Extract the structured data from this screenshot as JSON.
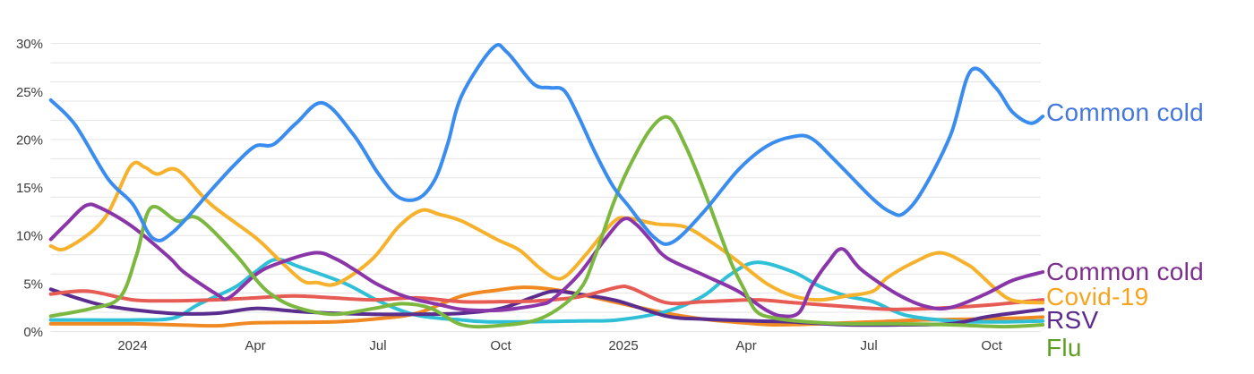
{
  "chart_data": {
    "type": "line",
    "title": "",
    "x_unit": "months_since_2023-11",
    "x_range_months": [
      0,
      24.25
    ],
    "grid": true,
    "legend_position": "right-end-labels",
    "x_ticks": [
      {
        "m": 2,
        "label": "2024"
      },
      {
        "m": 5,
        "label": "Apr"
      },
      {
        "m": 8,
        "label": "Jul"
      },
      {
        "m": 11,
        "label": "Oct"
      },
      {
        "m": 14,
        "label": "2025"
      },
      {
        "m": 17,
        "label": "Apr"
      },
      {
        "m": 20,
        "label": "Jul"
      },
      {
        "m": 23,
        "label": "Oct"
      }
    ],
    "y_axis": {
      "min": 0,
      "max": 30,
      "grid_step": 2,
      "unit": "%",
      "tick_values": [
        0,
        5,
        10,
        15,
        20,
        25,
        30
      ],
      "tick_labels": [
        "0%",
        "5%",
        "10%",
        "15%",
        "20%",
        "25%",
        "30%"
      ]
    },
    "series": [
      {
        "name": "",
        "end_label": "",
        "color": "#F08921",
        "label_color": "",
        "label_y": null,
        "points": [
          [
            0,
            0.8
          ],
          [
            1,
            0.8
          ],
          [
            2,
            0.8
          ],
          [
            3,
            0.7
          ],
          [
            4.05,
            0.6
          ],
          [
            5,
            0.9
          ],
          [
            6.9,
            1.0
          ],
          [
            7.9,
            1.3
          ],
          [
            8.95,
            1.9
          ],
          [
            10.05,
            3.7
          ],
          [
            10.9,
            4.3
          ],
          [
            11.55,
            4.6
          ],
          [
            12.25,
            4.4
          ],
          [
            12.9,
            3.9
          ],
          [
            13.85,
            3.0
          ],
          [
            15.05,
            1.9
          ],
          [
            15.95,
            1.3
          ],
          [
            16.95,
            0.9
          ],
          [
            17.7,
            0.7
          ],
          [
            18.8,
            0.8
          ],
          [
            20.1,
            1.0
          ],
          [
            21.3,
            1.2
          ],
          [
            22.65,
            1.3
          ],
          [
            23.7,
            1.4
          ],
          [
            24.25,
            1.5
          ]
        ]
      },
      {
        "name": "",
        "end_label": "",
        "color": "#2FBFD6",
        "label_color": "",
        "label_y": null,
        "points": [
          [
            0,
            1.2
          ],
          [
            1,
            1.2
          ],
          [
            2,
            1.2
          ],
          [
            3,
            1.4
          ],
          [
            3.6,
            2.8
          ],
          [
            4.5,
            4.6
          ],
          [
            5,
            6.2
          ],
          [
            5.5,
            7.5
          ],
          [
            6.1,
            6.7
          ],
          [
            7.2,
            5.0
          ],
          [
            8.05,
            3.1
          ],
          [
            8.95,
            1.7
          ],
          [
            10.05,
            1.2
          ],
          [
            10.9,
            1.0
          ],
          [
            12.9,
            1.1
          ],
          [
            13.85,
            1.2
          ],
          [
            15.05,
            2.1
          ],
          [
            15.95,
            3.7
          ],
          [
            16.6,
            5.9
          ],
          [
            17.25,
            7.2
          ],
          [
            18.15,
            6.2
          ],
          [
            18.8,
            4.7
          ],
          [
            19.45,
            3.7
          ],
          [
            20.1,
            3.1
          ],
          [
            20.9,
            1.7
          ],
          [
            22,
            1.1
          ],
          [
            23.05,
            1.0
          ],
          [
            24.25,
            1.1
          ]
        ]
      },
      {
        "name": "RSV",
        "end_label": "RSV",
        "color": "#5A2D8E",
        "label_color": "#5B2A8C",
        "label_y": 357,
        "points": [
          [
            0,
            4.4
          ],
          [
            0.7,
            3.4
          ],
          [
            1.45,
            2.6
          ],
          [
            2.9,
            1.9
          ],
          [
            4.05,
            1.9
          ],
          [
            5,
            2.4
          ],
          [
            6,
            2.1
          ],
          [
            6.9,
            1.9
          ],
          [
            7.9,
            1.8
          ],
          [
            8.95,
            1.8
          ],
          [
            10.05,
            1.9
          ],
          [
            11,
            2.4
          ],
          [
            11.8,
            3.6
          ],
          [
            12.3,
            4.2
          ],
          [
            12.9,
            3.9
          ],
          [
            13.85,
            3.2
          ],
          [
            15.05,
            1.6
          ],
          [
            15.95,
            1.3
          ],
          [
            17.25,
            1.1
          ],
          [
            18.15,
            1.0
          ],
          [
            19.45,
            0.7
          ],
          [
            20.75,
            0.7
          ],
          [
            22,
            0.8
          ],
          [
            22.85,
            1.5
          ],
          [
            23.5,
            1.9
          ],
          [
            24.25,
            2.3
          ]
        ]
      },
      {
        "name": "",
        "end_label": "",
        "color": "#E65C55",
        "label_color": "",
        "label_y": null,
        "points": [
          [
            0,
            3.9
          ],
          [
            0.9,
            4.2
          ],
          [
            2,
            3.3
          ],
          [
            2.9,
            3.2
          ],
          [
            4,
            3.3
          ],
          [
            5,
            3.5
          ],
          [
            5.95,
            3.7
          ],
          [
            6.9,
            3.5
          ],
          [
            7.9,
            3.3
          ],
          [
            8.95,
            3.5
          ],
          [
            10.05,
            3.1
          ],
          [
            10.9,
            3.1
          ],
          [
            11.9,
            3.2
          ],
          [
            12.9,
            3.6
          ],
          [
            13.85,
            4.6
          ],
          [
            14.2,
            4.5
          ],
          [
            15.05,
            3.0
          ],
          [
            15.95,
            3.1
          ],
          [
            17.25,
            3.3
          ],
          [
            18.15,
            3.0
          ],
          [
            19.45,
            2.6
          ],
          [
            20.1,
            2.4
          ],
          [
            20.75,
            2.3
          ],
          [
            22,
            2.5
          ],
          [
            23.05,
            2.8
          ],
          [
            24.25,
            3.3
          ]
        ]
      },
      {
        "name": "Covid-19",
        "end_label": "Covid-19",
        "color": "#F6B22C",
        "label_color": "#F6A41E",
        "label_y": 331,
        "points": [
          [
            0,
            8.9
          ],
          [
            0.4,
            8.7
          ],
          [
            1.3,
            11.7
          ],
          [
            1.95,
            17.2
          ],
          [
            2.3,
            17.1
          ],
          [
            2.6,
            16.4
          ],
          [
            3.1,
            16.8
          ],
          [
            3.9,
            13.3
          ],
          [
            5,
            9.8
          ],
          [
            5.55,
            7.6
          ],
          [
            6.15,
            5.3
          ],
          [
            6.5,
            5.1
          ],
          [
            7,
            5.0
          ],
          [
            7.85,
            7.5
          ],
          [
            8.5,
            10.9
          ],
          [
            9.05,
            12.6
          ],
          [
            9.5,
            12.2
          ],
          [
            10.05,
            11.5
          ],
          [
            10.9,
            9.6
          ],
          [
            11.45,
            8.5
          ],
          [
            11.9,
            6.8
          ],
          [
            12.3,
            5.6
          ],
          [
            12.6,
            5.8
          ],
          [
            13.1,
            8.1
          ],
          [
            13.75,
            11.4
          ],
          [
            14.1,
            11.8
          ],
          [
            14.8,
            11.2
          ],
          [
            15.5,
            10.9
          ],
          [
            16.15,
            9.3
          ],
          [
            16.8,
            7.3
          ],
          [
            17.5,
            5.0
          ],
          [
            18.15,
            3.7
          ],
          [
            18.8,
            3.3
          ],
          [
            19.45,
            3.7
          ],
          [
            20.1,
            4.2
          ],
          [
            20.45,
            5.6
          ],
          [
            21.1,
            7.2
          ],
          [
            21.75,
            8.2
          ],
          [
            22.4,
            7.0
          ],
          [
            22.65,
            6.2
          ],
          [
            23.3,
            3.7
          ],
          [
            23.7,
            3.1
          ],
          [
            24.25,
            3.0
          ]
        ]
      },
      {
        "name": "Common cold",
        "end_label": "Common cold",
        "color": "#8A35A8",
        "label_color": "#7C2E8C",
        "label_y": 303,
        "points": [
          [
            0,
            9.6
          ],
          [
            0.4,
            11.3
          ],
          [
            0.85,
            13.1
          ],
          [
            1.2,
            12.9
          ],
          [
            2,
            10.9
          ],
          [
            2.9,
            7.7
          ],
          [
            3.25,
            6.2
          ],
          [
            4.05,
            3.9
          ],
          [
            4.35,
            3.5
          ],
          [
            5,
            5.9
          ],
          [
            5.5,
            7.0
          ],
          [
            6.45,
            8.2
          ],
          [
            6.95,
            7.6
          ],
          [
            7.4,
            6.5
          ],
          [
            7.95,
            5.0
          ],
          [
            8.5,
            3.9
          ],
          [
            8.95,
            3.3
          ],
          [
            9.5,
            2.8
          ],
          [
            10.05,
            2.3
          ],
          [
            10.9,
            2.2
          ],
          [
            11.55,
            2.5
          ],
          [
            11.95,
            2.8
          ],
          [
            12.25,
            3.3
          ],
          [
            12.9,
            5.9
          ],
          [
            13.55,
            9.6
          ],
          [
            14,
            11.7
          ],
          [
            14.3,
            11.2
          ],
          [
            14.65,
            9.6
          ],
          [
            15.05,
            7.7
          ],
          [
            15.95,
            5.9
          ],
          [
            16.8,
            4.2
          ],
          [
            17.5,
            2.2
          ],
          [
            17.9,
            1.6
          ],
          [
            18.3,
            2.0
          ],
          [
            18.6,
            4.7
          ],
          [
            19,
            7.2
          ],
          [
            19.35,
            8.6
          ],
          [
            19.8,
            6.5
          ],
          [
            20.65,
            4.0
          ],
          [
            21.4,
            2.6
          ],
          [
            22,
            2.5
          ],
          [
            22.85,
            3.9
          ],
          [
            23.5,
            5.3
          ],
          [
            24.25,
            6.2
          ]
        ]
      },
      {
        "name": "Flu",
        "end_label": "Flu",
        "color": "#7CB83F",
        "label_color": "#5F9E26",
        "label_y": 388,
        "points": [
          [
            0,
            1.6
          ],
          [
            1,
            2.4
          ],
          [
            1.7,
            3.6
          ],
          [
            2.1,
            8.0
          ],
          [
            2.45,
            12.9
          ],
          [
            3.1,
            11.5
          ],
          [
            3.6,
            11.8
          ],
          [
            4.5,
            8.1
          ],
          [
            5,
            5.5
          ],
          [
            5.35,
            4.0
          ],
          [
            5.95,
            2.6
          ],
          [
            6.9,
            1.8
          ],
          [
            7.9,
            2.4
          ],
          [
            8.6,
            2.9
          ],
          [
            9.3,
            2.4
          ],
          [
            10.05,
            0.7
          ],
          [
            10.9,
            0.6
          ],
          [
            12,
            1.4
          ],
          [
            12.9,
            4.2
          ],
          [
            13.3,
            7.8
          ],
          [
            13.75,
            13.3
          ],
          [
            14.1,
            16.8
          ],
          [
            14.65,
            21.0
          ],
          [
            15.1,
            22.3
          ],
          [
            15.5,
            19.5
          ],
          [
            15.95,
            14.9
          ],
          [
            16.6,
            7.5
          ],
          [
            16.95,
            4.4
          ],
          [
            17.25,
            2.1
          ],
          [
            17.7,
            1.4
          ],
          [
            18.5,
            1.0
          ],
          [
            19.45,
            0.8
          ],
          [
            20.65,
            0.8
          ],
          [
            22,
            0.7
          ],
          [
            23.3,
            0.5
          ],
          [
            24.25,
            0.7
          ]
        ]
      },
      {
        "name": "Common cold",
        "end_label": "Common cold",
        "color": "#3A8DEE",
        "label_color": "#4577DB",
        "label_y": 125,
        "points": [
          [
            0,
            24.1
          ],
          [
            0.6,
            21.5
          ],
          [
            1.4,
            15.9
          ],
          [
            2,
            13.3
          ],
          [
            2.5,
            9.7
          ],
          [
            3,
            10.4
          ],
          [
            4,
            15.1
          ],
          [
            4.5,
            17.4
          ],
          [
            5,
            19.3
          ],
          [
            5.45,
            19.5
          ],
          [
            6,
            21.7
          ],
          [
            6.65,
            23.8
          ],
          [
            7.4,
            20.5
          ],
          [
            8,
            16.5
          ],
          [
            8.5,
            14.0
          ],
          [
            9,
            13.9
          ],
          [
            9.4,
            15.9
          ],
          [
            9.7,
            19.5
          ],
          [
            10.05,
            24.6
          ],
          [
            10.8,
            29.5
          ],
          [
            11.15,
            29.1
          ],
          [
            11.8,
            25.8
          ],
          [
            12.2,
            25.4
          ],
          [
            12.55,
            25.1
          ],
          [
            12.9,
            22.4
          ],
          [
            13.3,
            18.7
          ],
          [
            13.75,
            15.1
          ],
          [
            14.1,
            13.2
          ],
          [
            14.75,
            9.8
          ],
          [
            15.2,
            9.3
          ],
          [
            15.95,
            12.4
          ],
          [
            16.8,
            16.8
          ],
          [
            17.5,
            19.3
          ],
          [
            18.15,
            20.3
          ],
          [
            18.6,
            20.1
          ],
          [
            19.2,
            17.7
          ],
          [
            20.1,
            13.8
          ],
          [
            20.55,
            12.4
          ],
          [
            20.85,
            12.3
          ],
          [
            21.3,
            14.6
          ],
          [
            22,
            20.5
          ],
          [
            22.5,
            27.2
          ],
          [
            23.1,
            25.4
          ],
          [
            23.5,
            22.9
          ],
          [
            23.95,
            21.7
          ],
          [
            24.25,
            22.4
          ]
        ]
      }
    ]
  },
  "colors": {
    "grid": "#E4E4E4",
    "axis_text": "#3C3C3C",
    "background": "#FFFFFF"
  }
}
